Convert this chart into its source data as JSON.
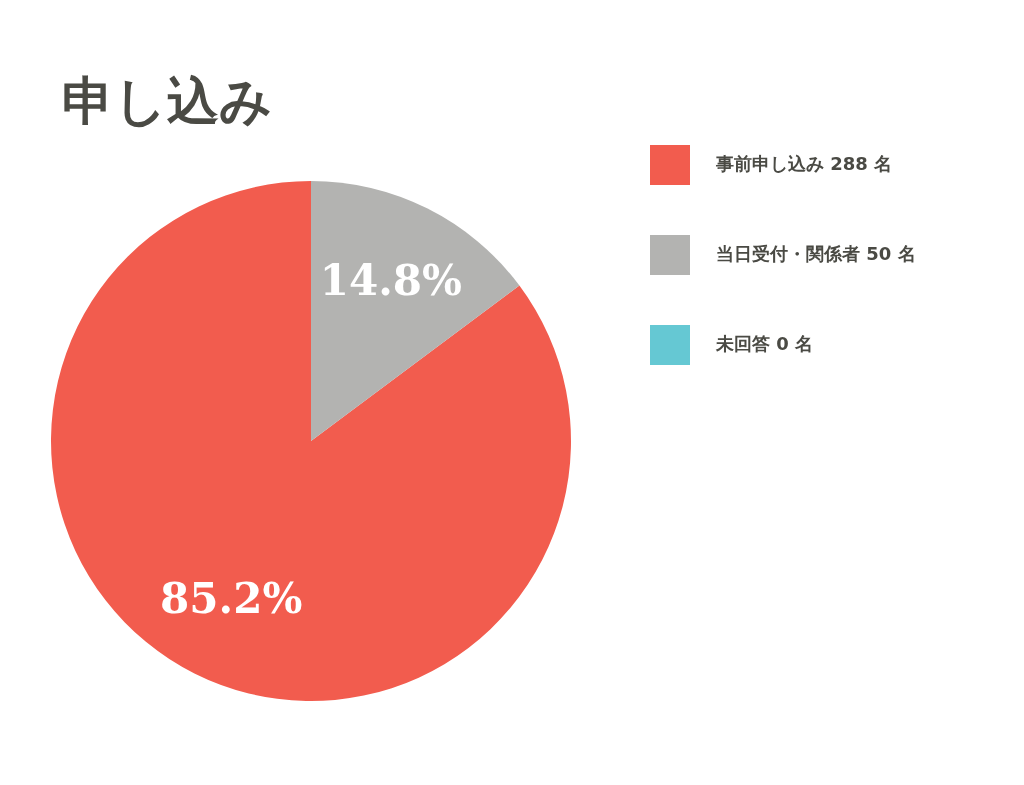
{
  "chart_data": {
    "type": "pie",
    "title": "申し込み",
    "categories": [
      "事前申し込み 288 名",
      "当日受付・関係者 50 名",
      "未回答 0 名"
    ],
    "values": [
      85.2,
      14.8,
      0
    ],
    "value_labels": [
      "85.2%",
      "14.8%",
      null
    ],
    "colors": [
      "#f25c4e",
      "#b3b3b1",
      "#65c8d3"
    ],
    "legend": "top right"
  }
}
